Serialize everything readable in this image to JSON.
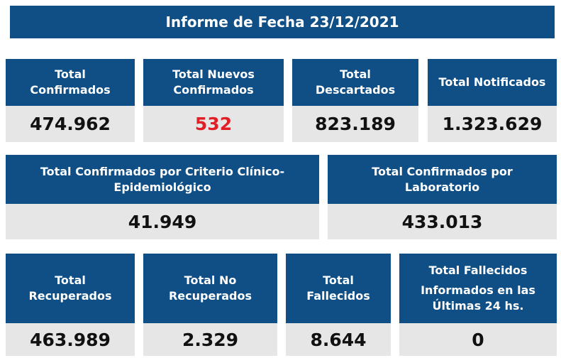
{
  "banner": {
    "title": "Informe de Fecha 23/12/2021"
  },
  "colors": {
    "header_bg": "#0f4f86",
    "value_bg": "#e6e6e6",
    "highlight_red": "#e01f26"
  },
  "row1": [
    {
      "label": "Total Confirmados",
      "value": "474.962"
    },
    {
      "label": "Total Nuevos Confirmados",
      "value": "532"
    },
    {
      "label": "Total Descartados",
      "value": "823.189"
    },
    {
      "label": "Total Notificados",
      "value": "1.323.629"
    }
  ],
  "row2": [
    {
      "label": "Total Confirmados por Criterio Clínico-Epidemiológico",
      "value": "41.949"
    },
    {
      "label": "Total Confirmados por Laboratorio",
      "value": "433.013"
    }
  ],
  "row3": [
    {
      "label": "Total Recuperados",
      "value": "463.989"
    },
    {
      "label": "Total No Recuperados",
      "value": "2.329"
    },
    {
      "label": "Total Fallecidos",
      "value": "8.644"
    },
    {
      "label": "Total Fallecidos",
      "label2": "Informados en las Últimas 24 hs.",
      "value": "0"
    }
  ]
}
